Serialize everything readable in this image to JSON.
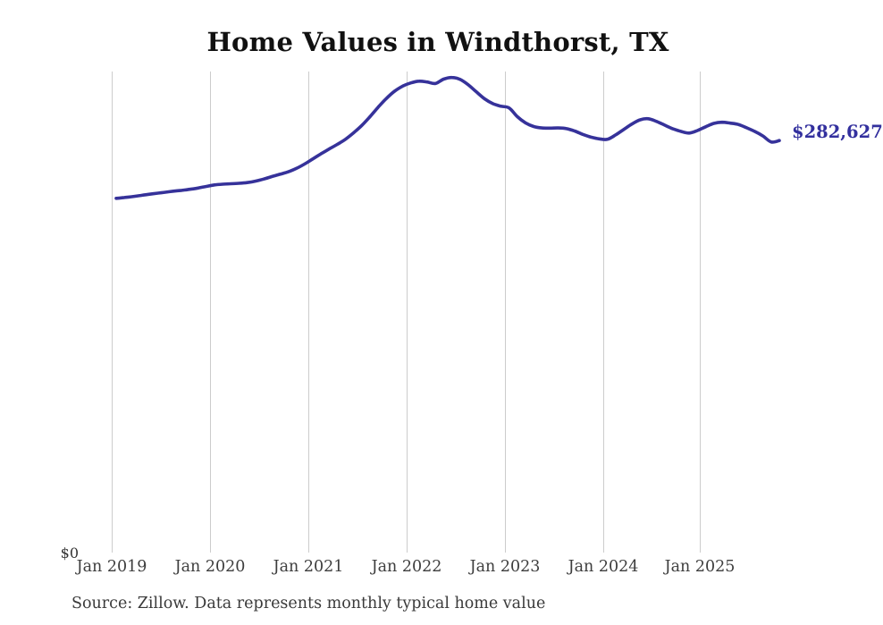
{
  "source_note": "Source: Zillow. Data represents monthly typical home value",
  "colors": {
    "line": "#36329a",
    "end_label": "#33309e",
    "gridline": "#cccccc",
    "axis_text": "#3d3d3d",
    "title_text": "#111111",
    "source_text": "#3a3a3a",
    "background": "#ffffff"
  },
  "chart_data": {
    "type": "line",
    "title": "Home Values in Windthorst, TX",
    "series_name": "Typical home value (monthly)",
    "xlabel": "",
    "ylabel": "",
    "legend": "none",
    "grid": "vertical",
    "ylim": [
      0,
      330000
    ],
    "y_tick_labels": [
      "$0"
    ],
    "x_tick_labels": [
      "Jan 2019",
      "Jan 2020",
      "Jan 2021",
      "Jan 2022",
      "Jan 2023",
      "Jan 2024",
      "Jan 2025"
    ],
    "end_value_label": "$282,627",
    "latest_value": 282627,
    "x": [
      "2019-01",
      "2019-02",
      "2019-03",
      "2019-04",
      "2019-05",
      "2019-06",
      "2019-07",
      "2019-08",
      "2019-09",
      "2019-10",
      "2019-11",
      "2019-12",
      "2020-01",
      "2020-02",
      "2020-03",
      "2020-04",
      "2020-05",
      "2020-06",
      "2020-07",
      "2020-08",
      "2020-09",
      "2020-10",
      "2020-11",
      "2020-12",
      "2021-01",
      "2021-02",
      "2021-03",
      "2021-04",
      "2021-05",
      "2021-06",
      "2021-07",
      "2021-08",
      "2021-09",
      "2021-10",
      "2021-11",
      "2021-12",
      "2022-01",
      "2022-02",
      "2022-03",
      "2022-04",
      "2022-05",
      "2022-06",
      "2022-07",
      "2022-08",
      "2022-09",
      "2022-10",
      "2022-11",
      "2022-12",
      "2023-01",
      "2023-02",
      "2023-03",
      "2023-04",
      "2023-05",
      "2023-06",
      "2023-07",
      "2023-08",
      "2023-09",
      "2023-10",
      "2023-11",
      "2023-12",
      "2024-01",
      "2024-02",
      "2024-03",
      "2024-04",
      "2024-05",
      "2024-06",
      "2024-07",
      "2024-08",
      "2024-09",
      "2024-10",
      "2024-11",
      "2024-12",
      "2025-01",
      "2025-02",
      "2025-03",
      "2025-04",
      "2025-05",
      "2025-06",
      "2025-07",
      "2025-08",
      "2025-09",
      "2025-10"
    ],
    "values": [
      243000,
      243600,
      244200,
      245000,
      245800,
      246500,
      247200,
      247900,
      248500,
      249200,
      250100,
      251200,
      252200,
      252700,
      253000,
      253300,
      253800,
      254800,
      256200,
      257900,
      259500,
      261200,
      263500,
      266500,
      270000,
      273500,
      276800,
      280000,
      283500,
      288000,
      293000,
      299000,
      305500,
      311500,
      316500,
      320000,
      322200,
      323400,
      322800,
      321800,
      324800,
      325900,
      324600,
      320900,
      316000,
      311300,
      308000,
      306200,
      305000,
      299000,
      294800,
      292300,
      291300,
      291200,
      291300,
      290800,
      289200,
      286900,
      285000,
      283800,
      283500,
      286500,
      290300,
      294000,
      296900,
      297600,
      295800,
      293200,
      290700,
      288900,
      287800,
      289500,
      292100,
      294400,
      295200,
      294600,
      293700,
      291400,
      288900,
      285800,
      281700,
      282627
    ]
  }
}
